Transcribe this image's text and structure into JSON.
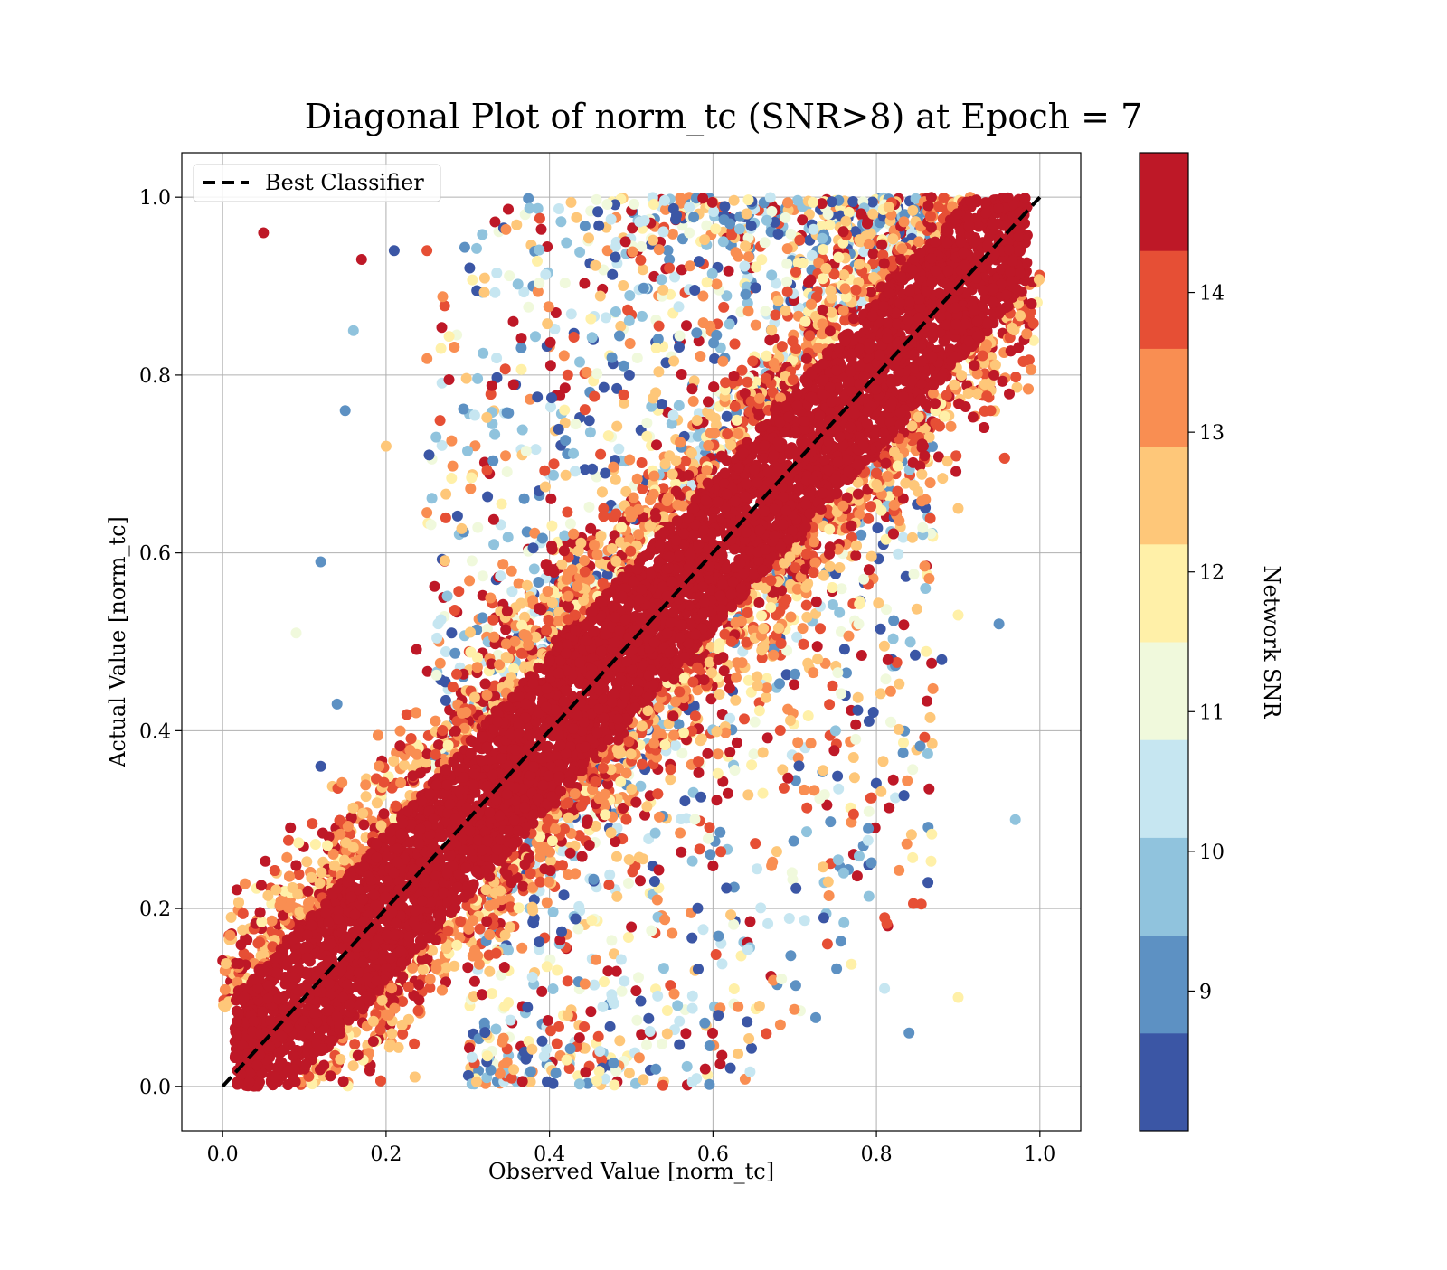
{
  "chart_data": {
    "type": "scatter",
    "title": "Diagonal Plot of norm_tc (SNR>8) at Epoch = 7",
    "xlabel": "Observed Value [norm_tc]",
    "ylabel": "Actual Value [norm_tc]",
    "xlim": [
      -0.05,
      1.05
    ],
    "ylim": [
      -0.05,
      1.05
    ],
    "xticks": [
      "0.0",
      "0.2",
      "0.4",
      "0.6",
      "0.8",
      "1.0"
    ],
    "yticks": [
      "0.0",
      "0.2",
      "0.4",
      "0.6",
      "0.8",
      "1.0"
    ],
    "xtick_values": [
      0.0,
      0.2,
      0.4,
      0.6,
      0.8,
      1.0
    ],
    "ytick_values": [
      0.0,
      0.2,
      0.4,
      0.6,
      0.8,
      1.0
    ],
    "grid": true,
    "legend": {
      "position": "top-left",
      "entries": [
        {
          "label": "Best Classifier",
          "style": "dashed",
          "color": "#000000"
        }
      ]
    },
    "reference_line": {
      "name": "Best Classifier",
      "x": [
        0.0,
        1.0
      ],
      "y": [
        0.0,
        1.0
      ]
    },
    "colorbar": {
      "label": "Network SNR",
      "vmin": 8,
      "vmax": 15,
      "ticks": [
        "9",
        "10",
        "11",
        "12",
        "13",
        "14"
      ],
      "tick_values": [
        9,
        10,
        11,
        12,
        13,
        14
      ],
      "colors": [
        "#313695",
        "#4575b4",
        "#74add1",
        "#abd9e9",
        "#e0f3f8",
        "#ffffbf",
        "#fee090",
        "#fdae61",
        "#f46d43",
        "#d73027",
        "#a50026"
      ]
    },
    "series": {
      "color_by": "Network SNR",
      "dense_band": {
        "half_width": 0.085,
        "snr": 14.8
      },
      "sample_points": [
        {
          "x": 0.05,
          "y": 0.96,
          "snr": 14.5
        },
        {
          "x": 0.17,
          "y": 0.93,
          "snr": 14.5
        },
        {
          "x": 0.21,
          "y": 0.94,
          "snr": 8.2
        },
        {
          "x": 0.25,
          "y": 0.94,
          "snr": 14.0
        },
        {
          "x": 0.15,
          "y": 0.76,
          "snr": 9.0
        },
        {
          "x": 0.16,
          "y": 0.85,
          "snr": 10.0
        },
        {
          "x": 0.2,
          "y": 0.72,
          "snr": 12.5
        },
        {
          "x": 0.12,
          "y": 0.59,
          "snr": 9.0
        },
        {
          "x": 0.09,
          "y": 0.51,
          "snr": 11.0
        },
        {
          "x": 0.14,
          "y": 0.43,
          "snr": 9.0
        },
        {
          "x": 0.12,
          "y": 0.36,
          "snr": 8.3
        },
        {
          "x": 0.88,
          "y": 0.48,
          "snr": 8.3
        },
        {
          "x": 0.95,
          "y": 0.52,
          "snr": 9.0
        },
        {
          "x": 0.97,
          "y": 0.3,
          "snr": 10.0
        },
        {
          "x": 0.84,
          "y": 0.06,
          "snr": 9.0
        },
        {
          "x": 0.81,
          "y": 0.11,
          "snr": 10.5
        },
        {
          "x": 0.9,
          "y": 0.1,
          "snr": 11.5
        },
        {
          "x": 0.94,
          "y": 0.76,
          "snr": 14.0
        },
        {
          "x": 0.86,
          "y": 0.66,
          "snr": 13.0
        },
        {
          "x": 0.9,
          "y": 0.65,
          "snr": 12.5
        },
        {
          "x": 0.86,
          "y": 0.56,
          "snr": 10.0
        },
        {
          "x": 0.9,
          "y": 0.53,
          "snr": 11.5
        },
        {
          "x": 0.75,
          "y": 0.4,
          "snr": 10.0
        },
        {
          "x": 0.76,
          "y": 0.24,
          "snr": 10.0
        },
        {
          "x": 0.79,
          "y": 0.29,
          "snr": 9.0
        },
        {
          "x": 0.74,
          "y": 0.16,
          "snr": 13.8
        }
      ]
    }
  }
}
